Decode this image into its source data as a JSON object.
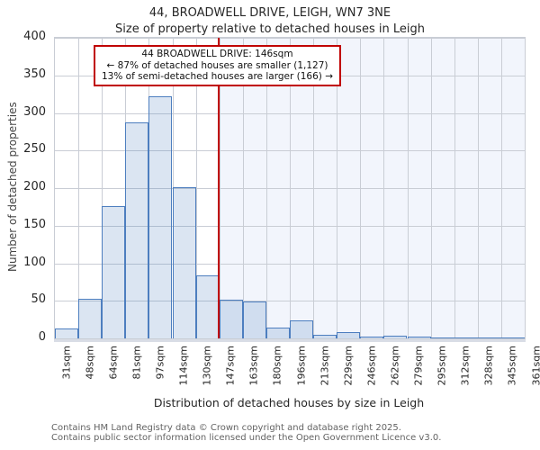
{
  "header": {
    "title": "44, BROADWELL DRIVE, LEIGH, WN7 3NE",
    "subtitle": "Size of property relative to detached houses in Leigh"
  },
  "annotation": {
    "line1": "44 BROADWELL DRIVE: 146sqm",
    "line2": "← 87% of detached houses are smaller (1,127)",
    "line3": "13% of semi-detached houses are larger (166) →"
  },
  "footer": {
    "line1": "Contains HM Land Registry data © Crown copyright and database right 2025.",
    "line2": "Contains public sector information licensed under the Open Government Licence v3.0."
  },
  "chart_data": {
    "type": "bar",
    "title": "44, BROADWELL DRIVE, LEIGH, WN7 3NE",
    "subtitle": "Size of property relative to detached houses in Leigh",
    "xlabel": "Distribution of detached houses by size in Leigh",
    "ylabel": "Number of detached properties",
    "categories": [
      "31sqm",
      "48sqm",
      "64sqm",
      "81sqm",
      "97sqm",
      "114sqm",
      "130sqm",
      "147sqm",
      "163sqm",
      "180sqm",
      "196sqm",
      "213sqm",
      "229sqm",
      "246sqm",
      "262sqm",
      "279sqm",
      "295sqm",
      "312sqm",
      "328sqm",
      "345sqm",
      "361sqm"
    ],
    "bin_edges_sqm": [
      31,
      48,
      64,
      81,
      97,
      114,
      130,
      147,
      163,
      180,
      196,
      213,
      229,
      246,
      262,
      279,
      295,
      312,
      328,
      345,
      361
    ],
    "values": [
      13,
      53,
      176,
      287,
      322,
      201,
      84,
      52,
      49,
      15,
      24,
      5,
      8,
      2,
      4,
      2,
      1,
      1,
      1,
      1
    ],
    "ylim": [
      0,
      400
    ],
    "y_ticks": [
      0,
      50,
      100,
      150,
      200,
      250,
      300,
      350,
      400
    ],
    "grid": true,
    "legend": "none",
    "marker_value_sqm": 146,
    "smaller_count": 1127,
    "smaller_pct": 87,
    "larger_count": 166,
    "larger_pct": 13,
    "colors": {
      "bar_fill": "rgba(77,126,191,0.20)",
      "bar_border": "#4d7ebf",
      "marker_line": "#c00000",
      "shade_right_of_marker": "#f2f5fc",
      "gridline": "#c9cdd5",
      "annotation_border": "#c00000"
    }
  }
}
